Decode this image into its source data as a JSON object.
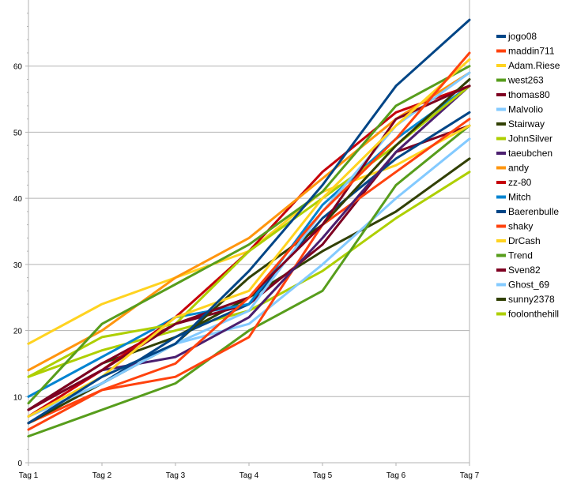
{
  "chart_data": {
    "type": "line",
    "title": "",
    "xlabel": "",
    "ylabel": "",
    "ylim": [
      0,
      70
    ],
    "yticks": [
      0,
      10,
      20,
      30,
      40,
      50,
      60
    ],
    "categories": [
      "Tag 1",
      "Tag 2",
      "Tag 3",
      "Tag 4",
      "Tag 5",
      "Tag 6",
      "Tag 7"
    ],
    "grid": "horizontal",
    "legend_position": "right",
    "series": [
      {
        "name": "jogo08",
        "color": "#004586",
        "values": [
          6,
          13,
          18,
          29,
          42,
          57,
          67
        ]
      },
      {
        "name": "maddin711",
        "color": "#ff420e",
        "values": [
          5,
          11,
          15,
          25,
          38,
          49,
          62
        ]
      },
      {
        "name": "Adam.Riese",
        "color": "#ffd320",
        "values": [
          7,
          13,
          22,
          26,
          40,
          51,
          61
        ]
      },
      {
        "name": "west263",
        "color": "#579d1c",
        "values": [
          9,
          21,
          27,
          33,
          41,
          54,
          60
        ]
      },
      {
        "name": "thomas80",
        "color": "#7e0021",
        "values": [
          8,
          14,
          21,
          25,
          36,
          52,
          57
        ]
      },
      {
        "name": "Malvolio",
        "color": "#83caff",
        "values": [
          7,
          12,
          18,
          23,
          38,
          51,
          59
        ]
      },
      {
        "name": "Stairway",
        "color": "#314004",
        "values": [
          6,
          12,
          18,
          28,
          36,
          48,
          58
        ]
      },
      {
        "name": "JohnSilver",
        "color": "#aecf00",
        "values": [
          13,
          19,
          21,
          32,
          40,
          48,
          57
        ]
      },
      {
        "name": "taeubchen",
        "color": "#4b1f6f",
        "values": [
          8,
          14,
          16,
          22,
          34,
          47,
          57
        ]
      },
      {
        "name": "andy",
        "color": "#ff950e",
        "values": [
          14,
          20,
          28,
          34,
          43,
          52,
          59
        ]
      },
      {
        "name": "zz-80",
        "color": "#c5000b",
        "values": [
          7,
          14,
          22,
          32,
          44,
          53,
          57
        ]
      },
      {
        "name": "Mitch",
        "color": "#0084d1",
        "values": [
          10,
          16,
          22,
          24,
          39,
          49,
          57
        ]
      },
      {
        "name": "Baerenbulle",
        "color": "#004586",
        "values": [
          7,
          12,
          19,
          24,
          37,
          46,
          53
        ]
      },
      {
        "name": "shaky",
        "color": "#ff420e",
        "values": [
          6,
          11,
          13,
          19,
          36,
          44,
          52
        ]
      },
      {
        "name": "DrCash",
        "color": "#ffd320",
        "values": [
          18,
          24,
          28,
          32,
          41,
          45,
          51
        ]
      },
      {
        "name": "Trend",
        "color": "#579d1c",
        "values": [
          4,
          8,
          12,
          20,
          26,
          42,
          51
        ]
      },
      {
        "name": "Sven82",
        "color": "#7e0021",
        "values": [
          8,
          15,
          21,
          24,
          33,
          47,
          51
        ]
      },
      {
        "name": "Ghost_69",
        "color": "#83caff",
        "values": [
          6,
          12,
          18,
          21,
          30,
          40,
          49
        ]
      },
      {
        "name": "sunny2378",
        "color": "#314004",
        "values": [
          8,
          15,
          19,
          25,
          32,
          38,
          46
        ]
      },
      {
        "name": "foolonthehill",
        "color": "#aecf00",
        "values": [
          13,
          17,
          20,
          23,
          29,
          37,
          44
        ]
      }
    ]
  }
}
